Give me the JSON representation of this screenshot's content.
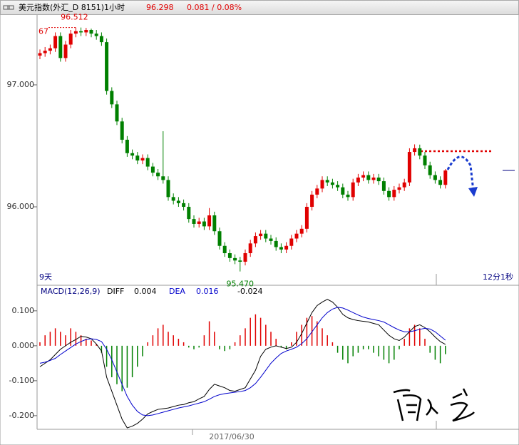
{
  "chart_data": [
    {
      "type": "candlestick",
      "title": "美元指数(外汇_D 8151)1小时",
      "last_price": "96.298",
      "change": "0.081 / 0.08%",
      "annotations": {
        "top_left": "67",
        "high": "96.512",
        "low": "95.470",
        "period": "9天",
        "countdown": "12分1秒",
        "date": "2017/06/30"
      },
      "up_color": "#e00000",
      "down_color": "#008000",
      "ylim": [
        95.357,
        97.567
      ],
      "yticks": [
        {
          "value": 97,
          "label": "97.000"
        },
        {
          "value": 96,
          "label": "96.000"
        }
      ],
      "open": [
        97.24,
        97.26,
        97.28,
        97.3,
        97.4,
        97.22,
        97.33,
        97.42,
        97.44,
        97.43,
        97.45,
        97.42,
        97.4,
        97.35,
        96.95,
        96.84,
        96.7,
        96.55,
        96.44,
        96.42,
        96.38,
        96.4,
        96.33,
        96.28,
        96.25,
        96.22,
        96.08,
        96.05,
        96.03,
        96.0,
        95.9,
        95.86,
        95.88,
        95.84,
        95.93,
        95.8,
        95.68,
        95.62,
        95.58,
        95.56,
        95.55,
        95.62,
        95.7,
        95.76,
        95.78,
        95.74,
        95.72,
        95.67,
        95.65,
        95.68,
        95.74,
        95.78,
        95.82,
        96.0,
        96.1,
        96.15,
        96.22,
        96.2,
        96.18,
        96.16,
        96.1,
        96.08,
        96.2,
        96.24,
        96.26,
        96.22,
        96.24,
        96.21,
        96.13,
        96.08,
        96.14,
        96.16,
        96.2,
        96.45,
        96.48,
        96.42,
        96.34,
        96.26,
        96.22,
        96.18
      ],
      "high": [
        97.29,
        97.31,
        97.33,
        97.43,
        97.43,
        97.36,
        97.45,
        97.47,
        97.47,
        97.467,
        97.46,
        97.45,
        97.43,
        97.38,
        96.98,
        96.87,
        96.73,
        96.58,
        96.47,
        96.45,
        96.43,
        96.43,
        96.36,
        96.31,
        96.62,
        96.25,
        96.11,
        96.08,
        96.06,
        96.03,
        95.93,
        95.91,
        95.91,
        95.99,
        95.96,
        95.83,
        95.71,
        95.65,
        95.61,
        95.59,
        95.65,
        95.73,
        95.79,
        95.81,
        95.81,
        95.77,
        95.75,
        95.7,
        95.71,
        95.77,
        95.81,
        95.85,
        96.03,
        96.13,
        96.18,
        96.25,
        96.25,
        96.23,
        96.21,
        96.19,
        96.13,
        96.23,
        96.27,
        96.29,
        96.29,
        96.27,
        96.27,
        96.24,
        96.16,
        96.17,
        96.19,
        96.23,
        96.48,
        96.512,
        96.51,
        96.45,
        96.37,
        96.29,
        96.25,
        96.31
      ],
      "low": [
        97.21,
        97.23,
        97.25,
        97.27,
        97.19,
        97.19,
        97.3,
        97.39,
        97.4,
        97.4,
        97.39,
        97.37,
        97.32,
        96.92,
        96.81,
        96.67,
        96.52,
        96.41,
        96.39,
        96.35,
        96.35,
        96.3,
        96.25,
        96.22,
        96.19,
        96.05,
        96.02,
        96.0,
        95.97,
        95.87,
        95.83,
        95.83,
        95.81,
        95.81,
        95.77,
        95.65,
        95.59,
        95.55,
        95.53,
        95.47,
        95.52,
        95.59,
        95.67,
        95.73,
        95.71,
        95.69,
        95.64,
        95.62,
        95.62,
        95.65,
        95.71,
        95.75,
        95.79,
        95.97,
        96.07,
        96.12,
        96.17,
        96.15,
        96.13,
        96.07,
        96.05,
        96.05,
        96.17,
        96.21,
        96.19,
        96.19,
        96.18,
        96.1,
        96.05,
        96.05,
        96.11,
        96.13,
        96.17,
        96.42,
        96.39,
        96.31,
        96.23,
        96.19,
        96.15,
        96.15
      ],
      "close": [
        97.26,
        97.28,
        97.3,
        97.4,
        97.22,
        97.33,
        97.42,
        97.44,
        97.43,
        97.45,
        97.42,
        97.4,
        97.35,
        96.95,
        96.84,
        96.7,
        96.55,
        96.44,
        96.42,
        96.38,
        96.4,
        96.33,
        96.28,
        96.25,
        96.22,
        96.08,
        96.05,
        96.03,
        96.0,
        95.9,
        95.86,
        95.88,
        95.84,
        95.93,
        95.8,
        95.68,
        95.62,
        95.58,
        95.56,
        95.55,
        95.62,
        95.7,
        95.76,
        95.78,
        95.74,
        95.72,
        95.67,
        95.65,
        95.68,
        95.74,
        95.78,
        95.82,
        96.0,
        96.1,
        96.15,
        96.22,
        96.2,
        96.18,
        96.16,
        96.1,
        96.08,
        96.2,
        96.24,
        96.26,
        96.22,
        96.24,
        96.21,
        96.13,
        96.08,
        96.14,
        96.16,
        96.2,
        96.45,
        96.48,
        96.42,
        96.34,
        96.26,
        96.22,
        96.18,
        96.298
      ]
    },
    {
      "type": "macd",
      "title": "MACD(12,26,9)",
      "ylim": [
        -0.239,
        0.167
      ],
      "yticks": [
        {
          "value": 0.1,
          "label": "0.100"
        },
        {
          "value": 0,
          "label": "0.000"
        },
        {
          "value": -0.1,
          "label": "-0.100"
        },
        {
          "value": -0.2,
          "label": "-0.200"
        }
      ],
      "series": [
        {
          "name": "DIFF",
          "color": "#000000",
          "current": "0.004",
          "values": [
            -0.06,
            -0.05,
            -0.04,
            -0.025,
            -0.01,
            0.0,
            0.01,
            0.018,
            0.027,
            0.025,
            0.02,
            0.005,
            -0.015,
            -0.09,
            -0.13,
            -0.17,
            -0.21,
            -0.235,
            -0.23,
            -0.222,
            -0.21,
            -0.195,
            -0.188,
            -0.182,
            -0.18,
            -0.178,
            -0.174,
            -0.17,
            -0.168,
            -0.163,
            -0.16,
            -0.152,
            -0.145,
            -0.125,
            -0.11,
            -0.115,
            -0.12,
            -0.128,
            -0.13,
            -0.125,
            -0.12,
            -0.095,
            -0.07,
            -0.03,
            -0.01,
            -0.004,
            0.0,
            -0.004,
            -0.008,
            -0.004,
            0.01,
            0.035,
            0.065,
            0.095,
            0.115,
            0.125,
            0.133,
            0.125,
            0.11,
            0.09,
            0.08,
            0.075,
            0.072,
            0.07,
            0.068,
            0.064,
            0.06,
            0.045,
            0.03,
            0.02,
            0.015,
            0.025,
            0.04,
            0.055,
            0.06,
            0.052,
            0.04,
            0.025,
            0.012,
            0.004
          ]
        },
        {
          "name": "DEA",
          "color": "#0000cc",
          "current": "0.016",
          "values": [
            -0.05,
            -0.047,
            -0.042,
            -0.036,
            -0.025,
            -0.015,
            -0.005,
            0.005,
            0.012,
            0.018,
            0.02,
            0.018,
            0.012,
            -0.01,
            -0.04,
            -0.075,
            -0.11,
            -0.145,
            -0.17,
            -0.188,
            -0.198,
            -0.2,
            -0.198,
            -0.194,
            -0.19,
            -0.186,
            -0.182,
            -0.178,
            -0.175,
            -0.172,
            -0.168,
            -0.164,
            -0.16,
            -0.153,
            -0.145,
            -0.14,
            -0.137,
            -0.135,
            -0.133,
            -0.131,
            -0.128,
            -0.12,
            -0.108,
            -0.09,
            -0.07,
            -0.05,
            -0.035,
            -0.022,
            -0.015,
            -0.01,
            -0.004,
            0.006,
            0.02,
            0.04,
            0.06,
            0.08,
            0.095,
            0.105,
            0.11,
            0.108,
            0.102,
            0.095,
            0.088,
            0.082,
            0.078,
            0.075,
            0.072,
            0.068,
            0.06,
            0.052,
            0.045,
            0.04,
            0.04,
            0.043,
            0.047,
            0.05,
            0.048,
            0.04,
            0.028,
            0.016
          ]
        }
      ],
      "histogram": {
        "current": "-0.024",
        "up_color": "#e00000",
        "down_color": "#008000",
        "values": [
          0.01,
          0.03,
          0.04,
          0.05,
          0.04,
          0.03,
          0.05,
          0.04,
          0.03,
          0.02,
          0.015,
          0.005,
          -0.02,
          -0.06,
          -0.09,
          -0.11,
          -0.13,
          -0.12,
          -0.09,
          -0.06,
          -0.03,
          0.01,
          0.03,
          0.05,
          0.06,
          0.04,
          0.03,
          0.02,
          0.01,
          -0.005,
          -0.01,
          -0.005,
          0.03,
          0.07,
          0.04,
          -0.01,
          -0.015,
          -0.01,
          0.01,
          0.03,
          0.05,
          0.08,
          0.09,
          0.08,
          0.06,
          0.04,
          0.02,
          -0.005,
          -0.01,
          0.01,
          0.04,
          0.06,
          0.08,
          0.085,
          0.07,
          0.05,
          0.03,
          0.01,
          -0.02,
          -0.04,
          -0.05,
          -0.03,
          -0.02,
          -0.01,
          -0.01,
          -0.02,
          -0.03,
          -0.04,
          -0.05,
          -0.04,
          -0.01,
          0.02,
          0.05,
          0.06,
          0.05,
          0.02,
          -0.02,
          -0.04,
          -0.05,
          -0.024
        ]
      }
    }
  ]
}
